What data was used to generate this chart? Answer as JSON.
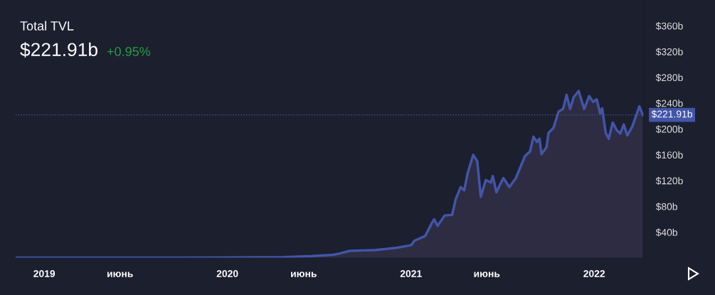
{
  "chart_data": {
    "type": "area",
    "title": "Total TVL",
    "subtitle": "$221.91b",
    "annotations": [
      "+0.95%"
    ],
    "x": [
      "2018-11-05",
      "2019-07-15",
      "2020-01-01",
      "2020-04-22",
      "2020-06-17",
      "2020-07-29",
      "2020-08-12",
      "2020-08-31",
      "2020-10-22",
      "2020-11-12",
      "2020-12-04",
      "2021-01-01",
      "2021-01-08",
      "2021-01-29",
      "2021-02-12",
      "2021-02-16",
      "2021-02-23",
      "2021-03-09",
      "2021-03-24",
      "2021-03-31",
      "2021-04-10",
      "2021-04-17",
      "2021-04-24",
      "2021-05-05",
      "2021-05-13",
      "2021-05-20",
      "2021-05-30",
      "2021-06-09",
      "2021-06-13",
      "2021-06-20",
      "2021-07-04",
      "2021-07-16",
      "2021-07-29",
      "2021-08-16",
      "2021-08-26",
      "2021-09-02",
      "2021-09-09",
      "2021-09-14",
      "2021-09-18",
      "2021-09-28",
      "2021-10-02",
      "2021-10-12",
      "2021-10-22",
      "2021-10-31",
      "2021-11-07",
      "2021-11-14",
      "2021-11-21",
      "2021-12-01",
      "2021-12-12",
      "2021-12-22",
      "2021-12-30",
      "2022-01-06",
      "2022-01-13",
      "2022-01-17",
      "2022-01-24",
      "2022-01-30",
      "2022-02-07",
      "2022-02-15",
      "2022-02-22",
      "2022-03-01",
      "2022-03-08",
      "2022-03-18",
      "2022-04-01",
      "2022-04-08"
    ],
    "series": [
      {
        "color": "#4255a8",
        "values": [
          0.5,
          0.6,
          0.8,
          1.5,
          3,
          5,
          7,
          11,
          12.5,
          14,
          16,
          20,
          27,
          34,
          55,
          60,
          50,
          66,
          67,
          91,
          110,
          105,
          132,
          160,
          150,
          95,
          121,
          117,
          127,
          102,
          124,
          110,
          124,
          158,
          165,
          188,
          180,
          185,
          161,
          172,
          194,
          202,
          227,
          231,
          253,
          231,
          249,
          259,
          231,
          251,
          242,
          246,
          224,
          232,
          194,
          185,
          210,
          198,
          193,
          207,
          190,
          204,
          235,
          221.91
        ]
      }
    ],
    "xlim": [
      "2018-11-05",
      "2022-04-10"
    ],
    "xticks": [
      {
        "value": "2019-01-01",
        "label": "2019"
      },
      {
        "value": "2019-06-01",
        "label": "июнь"
      },
      {
        "value": "2020-01-01",
        "label": "2020"
      },
      {
        "value": "2020-06-01",
        "label": "июнь"
      },
      {
        "value": "2021-01-01",
        "label": "2021"
      },
      {
        "value": "2021-06-01",
        "label": "июнь"
      },
      {
        "value": "2022-01-01",
        "label": "2022"
      }
    ],
    "ylim": [
      0,
      400
    ],
    "yticks": [
      {
        "value": 40,
        "label": "$40b"
      },
      {
        "value": 80,
        "label": "$80b"
      },
      {
        "value": 120,
        "label": "$120b"
      },
      {
        "value": 160,
        "label": "$160b"
      },
      {
        "value": 200,
        "label": "$200b"
      },
      {
        "value": 240,
        "label": "$240b"
      },
      {
        "value": 280,
        "label": "$280b"
      },
      {
        "value": 320,
        "label": "$320b"
      },
      {
        "value": 360,
        "label": "$360b"
      }
    ],
    "ref_lines": [
      {
        "axis": "y",
        "value": 221.91,
        "label": "$221.91b",
        "color": "#4255a8",
        "line_style": "dotted"
      }
    ],
    "grid": false,
    "legend": false
  }
}
